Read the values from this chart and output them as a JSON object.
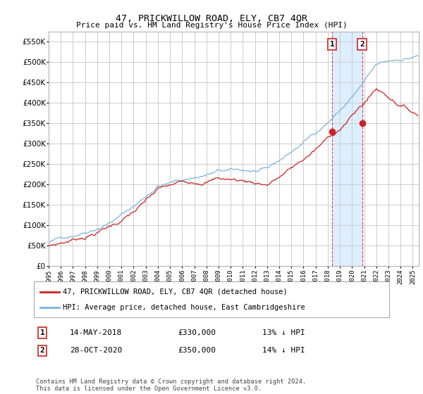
{
  "title": "47, PRICKWILLOW ROAD, ELY, CB7 4QR",
  "subtitle": "Price paid vs. HM Land Registry's House Price Index (HPI)",
  "ytick_values": [
    0,
    50000,
    100000,
    150000,
    200000,
    250000,
    300000,
    350000,
    400000,
    450000,
    500000,
    550000
  ],
  "ylim": [
    0,
    575000
  ],
  "xlim_start": 1995.0,
  "xlim_end": 2025.5,
  "hpi_color": "#7ab4d8",
  "price_color": "#cc2222",
  "shade_color": "#ddeeff",
  "transaction1_x": 2018.37,
  "transaction1_y": 330000,
  "transaction2_x": 2020.83,
  "transaction2_y": 350000,
  "transaction1_date": "14-MAY-2018",
  "transaction1_price": "£330,000",
  "transaction1_label": "13% ↓ HPI",
  "transaction2_date": "28-OCT-2020",
  "transaction2_price": "£350,000",
  "transaction2_label": "14% ↓ HPI",
  "legend_line1": "47, PRICKWILLOW ROAD, ELY, CB7 4QR (detached house)",
  "legend_line2": "HPI: Average price, detached house, East Cambridgeshire",
  "footer": "Contains HM Land Registry data © Crown copyright and database right 2024.\nThis data is licensed under the Open Government Licence v3.0.",
  "background_color": "#ffffff",
  "grid_color": "#cccccc"
}
